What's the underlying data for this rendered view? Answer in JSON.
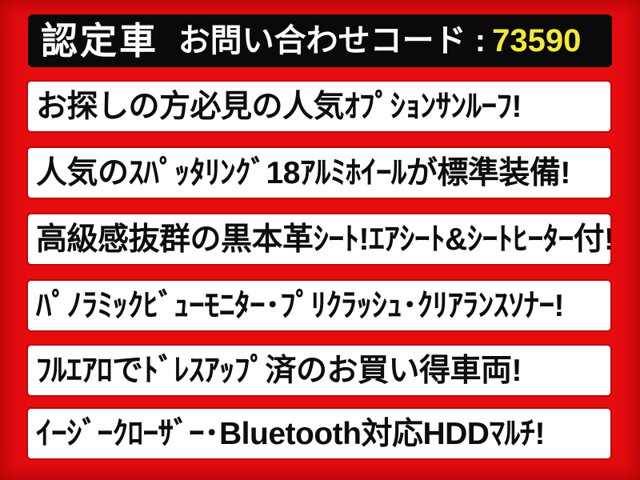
{
  "colors": {
    "background_red": "#e60c10",
    "edge_dark_red_shadow": "rgba(140,0,0,0.55)",
    "bar_black": "#0a0a0a",
    "code_yellow": "#f2e93a",
    "banner_edge_red": "#c10408"
  },
  "topbar": {
    "cert_badge": "認定車",
    "inquiry_label": "お問い合わせコード :",
    "inquiry_code": "73590"
  },
  "banners": [
    {
      "text": "お探しの方必見の人気ｵﾌﾟｼｮﾝｻﾝﾙｰﾌ!"
    },
    {
      "text": "人気のｽﾊﾟｯﾀﾘﾝｸﾞ18ｱﾙﾐﾎｲｰﾙが標準装備!"
    },
    {
      "text": "高級感抜群の黒本革ｼｰﾄ!ｴｱｼｰﾄ&ｼｰﾄﾋｰﾀｰ付!"
    },
    {
      "text": "ﾊﾟﾉﾗﾐｯｸﾋﾞｭｰﾓﾆﾀｰ･ﾌﾟﾘｸﾗｯｼｭ･ｸﾘｱﾗﾝｽｿﾅｰ!"
    },
    {
      "text": "ﾌﾙｴｱﾛでﾄﾞﾚｽｱｯﾌﾟ済のお買い得車両!"
    },
    {
      "text": "ｲｰｼﾞｰｸﾛｰｻﾞｰ･Bluetooth対応HDDﾏﾙﾁ!"
    }
  ]
}
